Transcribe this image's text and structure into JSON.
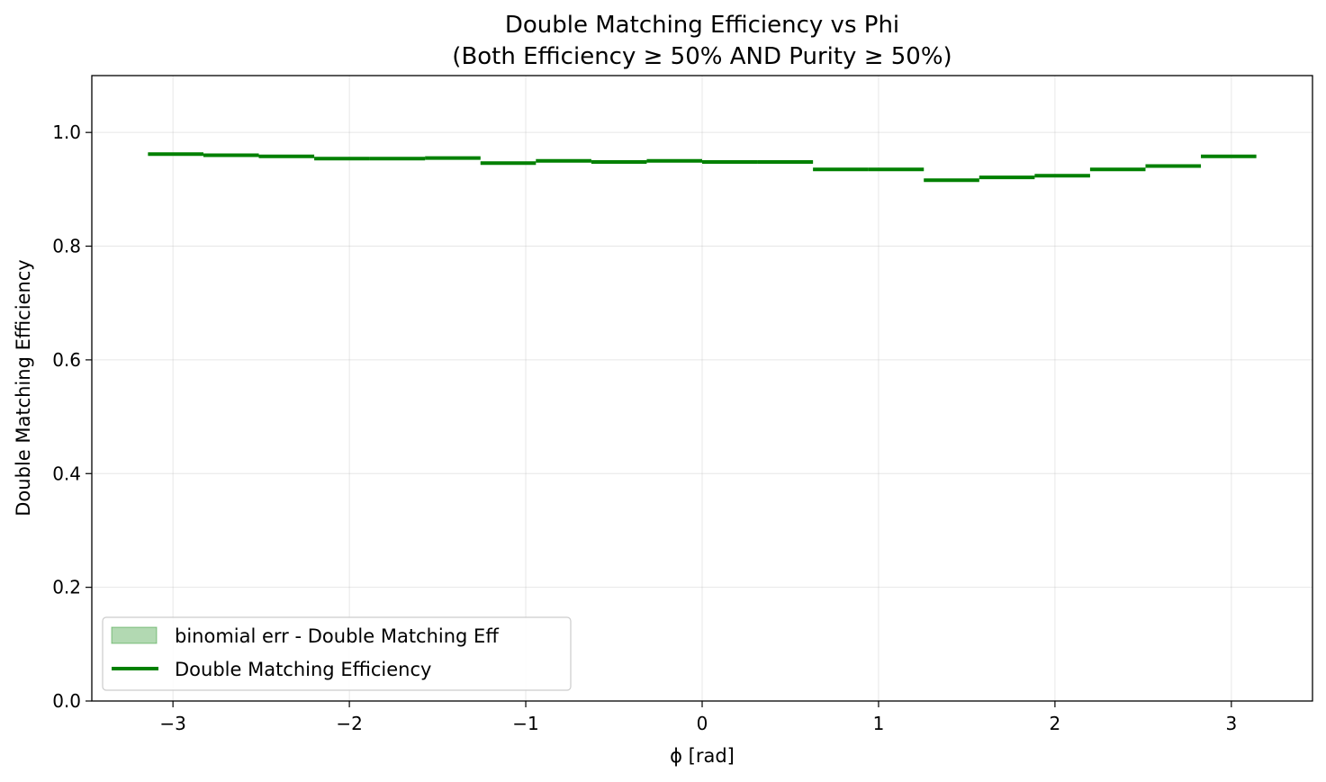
{
  "chart_data": {
    "type": "line",
    "title": "Double Matching Efficiency vs Phi",
    "subtitle": "(Both Efficiency ≥ 50% AND Purity ≥ 50%)",
    "xlabel": "ϕ [rad]",
    "ylabel": "Double Matching Efficiency",
    "xlim": [
      -3.46,
      3.46
    ],
    "ylim": [
      0.0,
      1.1
    ],
    "xticks": [
      -3,
      -2,
      -1,
      0,
      1,
      2,
      3
    ],
    "xtick_labels": [
      "−3",
      "−2",
      "−1",
      "0",
      "1",
      "2",
      "3"
    ],
    "yticks": [
      0.0,
      0.2,
      0.4,
      0.6,
      0.8,
      1.0
    ],
    "ytick_labels": [
      "0.0",
      "0.2",
      "0.4",
      "0.6",
      "0.8",
      "1.0"
    ],
    "grid": true,
    "legend_position": "lower-left",
    "bin_edges": [
      -3.1416,
      -2.8274,
      -2.5133,
      -2.1991,
      -1.885,
      -1.5708,
      -1.2566,
      -0.9425,
      -0.6283,
      -0.3142,
      0.0,
      0.3142,
      0.6283,
      0.9425,
      1.2566,
      1.5708,
      1.885,
      2.1991,
      2.5133,
      2.8274,
      3.1416
    ],
    "series": [
      {
        "name": "Double Matching Efficiency",
        "style": "step",
        "color": "#008000",
        "values": [
          0.962,
          0.96,
          0.958,
          0.954,
          0.954,
          0.955,
          0.946,
          0.95,
          0.948,
          0.95,
          0.948,
          0.948,
          0.935,
          0.935,
          0.916,
          0.921,
          0.924,
          0.935,
          0.941,
          0.958
        ]
      },
      {
        "name": "binomial err - Double Matching Eff",
        "style": "band",
        "color": "#008000",
        "opacity": 0.3,
        "half_width": [
          0.002,
          0.002,
          0.002,
          0.002,
          0.002,
          0.002,
          0.002,
          0.002,
          0.002,
          0.002,
          0.002,
          0.002,
          0.002,
          0.002,
          0.002,
          0.002,
          0.002,
          0.002,
          0.002,
          0.002
        ]
      }
    ]
  }
}
